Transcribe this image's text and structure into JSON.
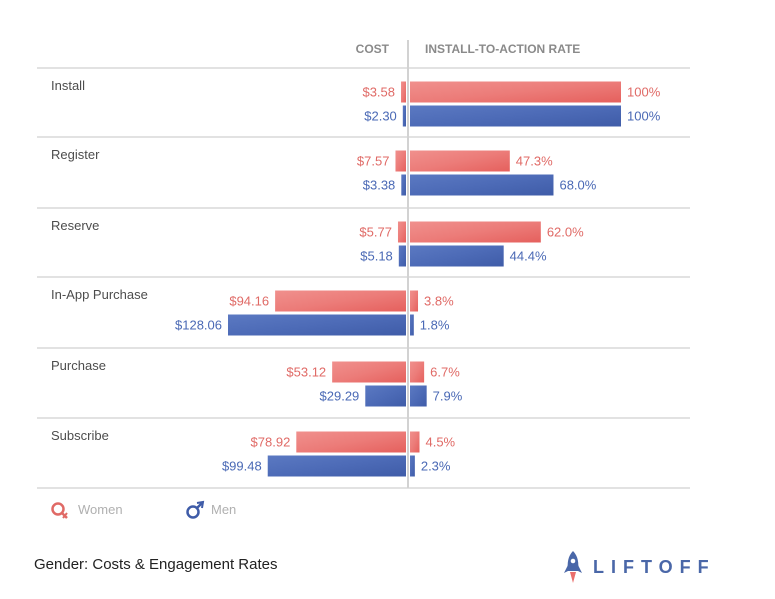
{
  "chart_data": {
    "type": "bar",
    "title": "Gender: Costs & Engagement Rates",
    "left_axis_label": "COST",
    "right_axis_label": "INSTALL-TO-ACTION RATE",
    "categories": [
      "Install",
      "Register",
      "Reserve",
      "In-App Purchase",
      "Purchase",
      "Subscribe"
    ],
    "series": [
      {
        "name": "Women",
        "color": "#ea6f6c",
        "cost": [
          3.58,
          7.57,
          5.77,
          94.16,
          53.12,
          78.92
        ],
        "cost_labels": [
          "$3.58",
          "$7.57",
          "$5.77",
          "$94.16",
          "$53.12",
          "$78.92"
        ],
        "rate": [
          100,
          47.3,
          62.0,
          3.8,
          6.7,
          4.5
        ],
        "rate_labels": [
          "100%",
          "47.3%",
          "62.0%",
          "3.8%",
          "6.7%",
          "4.5%"
        ]
      },
      {
        "name": "Men",
        "color": "#4a69b5",
        "cost": [
          2.3,
          3.38,
          5.18,
          128.06,
          29.29,
          99.48
        ],
        "cost_labels": [
          "$2.30",
          "$3.38",
          "$5.18",
          "$128.06",
          "$29.29",
          "$99.48"
        ],
        "rate": [
          100,
          68.0,
          44.4,
          1.8,
          7.9,
          2.3
        ],
        "rate_labels": [
          "100%",
          "68.0%",
          "44.4%",
          "1.8%",
          "7.9%",
          "2.3%"
        ]
      }
    ],
    "cost_range": [
      0,
      140
    ],
    "rate_range": [
      0,
      100
    ],
    "legend": [
      "Women",
      "Men"
    ],
    "legend_position": "bottom-left"
  },
  "brand": {
    "name": "LIFTOFF"
  }
}
